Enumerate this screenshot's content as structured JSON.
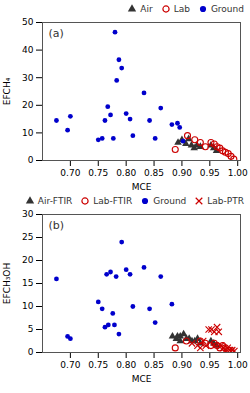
{
  "chart_data": [
    {
      "type": "scatter",
      "title": "(a)",
      "xlabel": "MCE",
      "ylabel": "EFCH₄",
      "xlim": [
        0.65,
        1.005
      ],
      "ylim": [
        0,
        50
      ],
      "xticks": [
        {
          "value": 0.7,
          "label": "0.70"
        },
        {
          "value": 0.75,
          "label": "0.75"
        },
        {
          "value": 0.8,
          "label": "0.80"
        },
        {
          "value": 0.85,
          "label": "0.85"
        },
        {
          "value": 0.9,
          "label": "0.90"
        },
        {
          "value": 0.95,
          "label": "0.95"
        },
        {
          "value": 1.0,
          "label": "1.00"
        }
      ],
      "yticks": [
        0,
        10,
        20,
        30,
        40,
        50
      ],
      "legend": "upper right",
      "series": [
        {
          "name": "Air",
          "color": "#333333",
          "marker": "triangle",
          "x": [
            0.893,
            0.9,
            0.907,
            0.912,
            0.917,
            0.922,
            0.927,
            0.933,
            0.952,
            0.957,
            0.962
          ],
          "values": [
            6.5,
            7.5,
            6.0,
            7.8,
            5.5,
            4.5,
            5.5,
            5.0,
            5.5,
            4.5,
            3.5
          ]
        },
        {
          "name": "Lab",
          "color": "#cc0000",
          "marker": "open_circle",
          "x": [
            0.888,
            0.91,
            0.923,
            0.933,
            0.942,
            0.952,
            0.958,
            0.963,
            0.968,
            0.973,
            0.978,
            0.983,
            0.988,
            0.993
          ],
          "values": [
            4.0,
            9.0,
            7.5,
            6.5,
            5.0,
            6.5,
            6.0,
            5.0,
            4.5,
            3.5,
            3.0,
            2.5,
            1.5,
            0.5
          ]
        },
        {
          "name": "Ground",
          "color": "#0000cc",
          "marker": "circle",
          "x": [
            0.675,
            0.695,
            0.7,
            0.75,
            0.757,
            0.762,
            0.767,
            0.772,
            0.777,
            0.78,
            0.783,
            0.787,
            0.792,
            0.8,
            0.807,
            0.812,
            0.832,
            0.842,
            0.852,
            0.862,
            0.882,
            0.892,
            0.896,
            0.902
          ],
          "values": [
            14.5,
            11.0,
            16.0,
            7.5,
            8.0,
            14.5,
            19.5,
            16.5,
            8.0,
            46.5,
            29.0,
            36.5,
            33.5,
            17.0,
            15.0,
            9.0,
            24.5,
            14.5,
            8.0,
            19.0,
            13.0,
            13.5,
            12.0,
            7.0
          ]
        }
      ]
    },
    {
      "type": "scatter",
      "title": "(b)",
      "xlabel": "MCE",
      "ylabel": "EFCH₃OH",
      "xlim": [
        0.65,
        1.005
      ],
      "ylim": [
        0,
        30
      ],
      "xticks": [
        {
          "value": 0.7,
          "label": "0.70"
        },
        {
          "value": 0.75,
          "label": "0.75"
        },
        {
          "value": 0.8,
          "label": "0.80"
        },
        {
          "value": 0.85,
          "label": "0.85"
        },
        {
          "value": 0.9,
          "label": "0.90"
        },
        {
          "value": 0.95,
          "label": "0.95"
        },
        {
          "value": 1.0,
          "label": "1.00"
        }
      ],
      "yticks": [
        0,
        5,
        10,
        15,
        20,
        25,
        30
      ],
      "legend": "upper right",
      "series": [
        {
          "name": "Air-FTIR",
          "color": "#333333",
          "marker": "triangle",
          "x": [
            0.883,
            0.89,
            0.897,
            0.903,
            0.908,
            0.913,
            0.918,
            0.923,
            0.928,
            0.933,
            0.892,
            0.897,
            0.952,
            0.957,
            0.962
          ],
          "values": [
            3.5,
            3.0,
            3.5,
            4.0,
            3.0,
            3.0,
            2.5,
            2.5,
            3.0,
            2.0,
            3.5,
            2.5,
            2.5,
            2.0,
            1.5
          ]
        },
        {
          "name": "Lab-FTIR",
          "color": "#cc0000",
          "marker": "open_circle",
          "x": [
            0.888,
            0.908,
            0.933,
            0.942,
            0.952,
            0.958,
            0.963,
            0.968,
            0.973,
            0.978,
            0.983,
            0.988
          ],
          "values": [
            1.0,
            2.5,
            2.5,
            2.0,
            1.5,
            2.0,
            1.5,
            1.0,
            1.5,
            1.0,
            0.5,
            0.5
          ]
        },
        {
          "name": "Ground",
          "color": "#0000cc",
          "marker": "circle",
          "x": [
            0.675,
            0.695,
            0.7,
            0.75,
            0.757,
            0.762,
            0.765,
            0.768,
            0.772,
            0.776,
            0.779,
            0.782,
            0.787,
            0.792,
            0.8,
            0.807,
            0.812,
            0.832,
            0.842,
            0.852,
            0.862,
            0.882
          ],
          "values": [
            16.0,
            3.5,
            3.0,
            11.0,
            9.5,
            5.5,
            17.0,
            6.0,
            17.5,
            8.5,
            6.0,
            16.5,
            4.0,
            24.0,
            18.0,
            17.0,
            10.0,
            18.5,
            9.5,
            6.5,
            16.5,
            10.5
          ]
        },
        {
          "name": "Lab-PTR",
          "color": "#cc0000",
          "marker": "x",
          "x": [
            0.918,
            0.928,
            0.933,
            0.938,
            0.943,
            0.948,
            0.953,
            0.958,
            0.963,
            0.966,
            0.97,
            0.974,
            0.978,
            0.982,
            0.986,
            0.99,
            0.994
          ],
          "values": [
            2.0,
            1.5,
            1.0,
            2.5,
            1.5,
            5.0,
            5.0,
            4.5,
            5.5,
            4.5,
            1.5,
            1.0,
            0.5,
            1.0,
            0.5,
            0.5,
            0.3
          ]
        }
      ]
    }
  ]
}
